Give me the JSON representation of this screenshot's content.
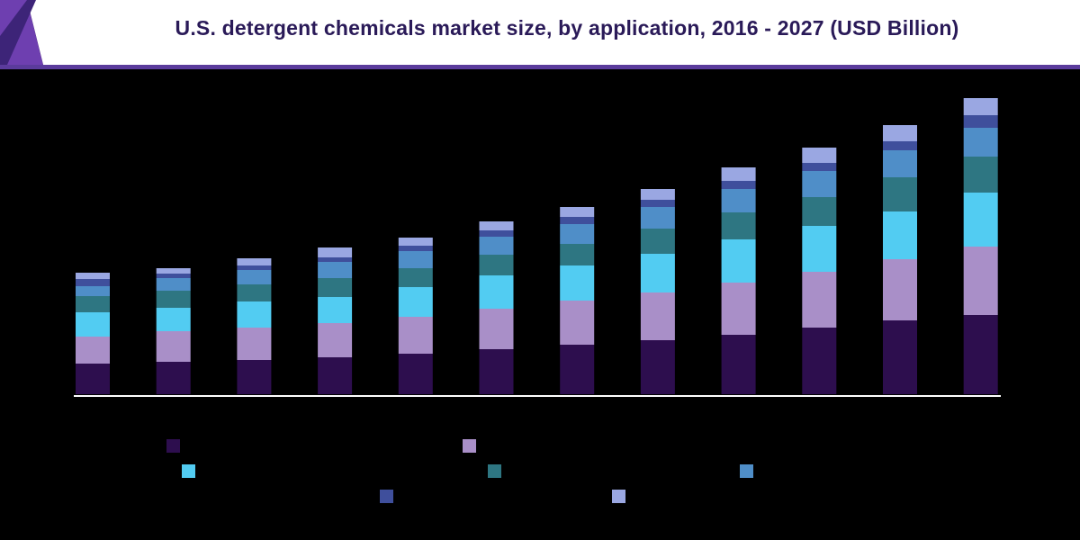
{
  "title": "U.S. detergent chemicals market size, by application, 2016 - 2027 (USD Billion)",
  "colors": {
    "header_bg": "#ffffff",
    "header_line": "#5b3b9c",
    "background": "#000000",
    "axis": "#ffffff"
  },
  "chart_data": {
    "type": "bar",
    "stacked": true,
    "categories": [
      "",
      "",
      "",
      "",
      "",
      "",
      "",
      "",
      "",
      "",
      "",
      ""
    ],
    "xlabel": "",
    "ylabel": "",
    "ylim": [
      0,
      33
    ],
    "grid": false,
    "legend_position": "bottom",
    "series": [
      {
        "color": "#2d0e4e",
        "values": [
          3.4,
          3.6,
          3.8,
          4.1,
          4.5,
          5.0,
          5.5,
          6.0,
          6.6,
          7.4,
          8.2,
          8.8
        ]
      },
      {
        "color": "#a98fc8",
        "values": [
          3.0,
          3.4,
          3.6,
          3.8,
          4.1,
          4.5,
          4.9,
          5.3,
          5.8,
          6.2,
          6.8,
          7.6
        ]
      },
      {
        "color": "#52ccf2",
        "values": [
          2.7,
          2.6,
          2.9,
          2.9,
          3.3,
          3.7,
          3.9,
          4.3,
          4.8,
          5.1,
          5.3,
          6.0
        ]
      },
      {
        "color": "#2e7682",
        "values": [
          1.8,
          1.9,
          1.9,
          2.1,
          2.1,
          2.3,
          2.4,
          2.8,
          3.0,
          3.2,
          3.8,
          4.0
        ]
      },
      {
        "color": "#4f8ec8",
        "values": [
          1.1,
          1.4,
          1.6,
          1.8,
          1.9,
          2.0,
          2.2,
          2.4,
          2.6,
          2.9,
          3.0,
          3.2
        ]
      },
      {
        "color": "#3f4f9c",
        "values": [
          0.8,
          0.5,
          0.5,
          0.5,
          0.6,
          0.7,
          0.8,
          0.8,
          0.9,
          0.9,
          1.0,
          1.4
        ]
      },
      {
        "color": "#9aa7e2",
        "values": [
          0.7,
          0.6,
          0.8,
          1.1,
          0.9,
          1.0,
          1.1,
          1.2,
          1.5,
          1.7,
          1.8,
          1.9
        ]
      }
    ]
  }
}
